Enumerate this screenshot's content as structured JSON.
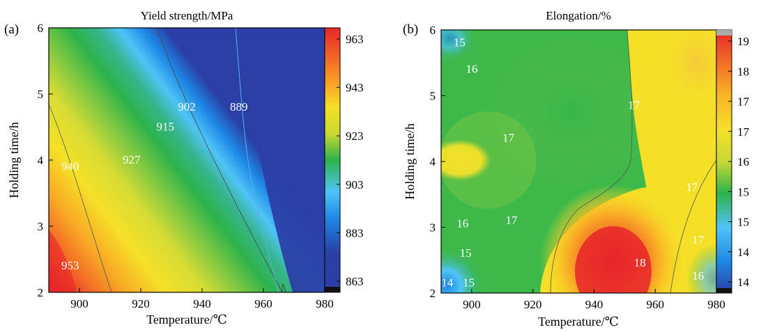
{
  "chart_data": [
    {
      "type": "heatmap",
      "panel_label": "(a)",
      "title": "Yield strength/MPa",
      "xlabel": "Temperature/℃",
      "ylabel": "Holding time/h",
      "xlim": [
        890,
        980
      ],
      "ylim": [
        2,
        6
      ],
      "x_ticks": [
        "900",
        "920",
        "940",
        "960",
        "980"
      ],
      "y_ticks": [
        "2",
        "3",
        "4",
        "5",
        "6"
      ],
      "colorbar": {
        "range": [
          863,
          963
        ],
        "tick_labels": [
          "963",
          "943",
          "923",
          "903",
          "883",
          "863"
        ],
        "tick_values": [
          963,
          943,
          923,
          903,
          883,
          863
        ]
      },
      "contour_labels": [
        {
          "text": "953",
          "x": 897,
          "y": 2.35
        },
        {
          "text": "940",
          "x": 897,
          "y": 3.85
        },
        {
          "text": "927",
          "x": 917,
          "y": 3.95
        },
        {
          "text": "915",
          "x": 928,
          "y": 4.45
        },
        {
          "text": "902",
          "x": 935,
          "y": 4.75
        },
        {
          "text": "889",
          "x": 952,
          "y": 4.75
        }
      ],
      "colors": {
        "high": "#e8262a",
        "mid": "#2db34a",
        "low": "#2b3fa6"
      }
    },
    {
      "type": "heatmap",
      "panel_label": "(b)",
      "title": "Elongation/%",
      "xlabel": "Temperature/℃",
      "ylabel": "Holding time/h",
      "xlim": [
        890,
        980
      ],
      "ylim": [
        2,
        6
      ],
      "x_ticks": [
        "900",
        "920",
        "940",
        "960",
        "980"
      ],
      "y_ticks": [
        "2",
        "3",
        "4",
        "5",
        "6"
      ],
      "colorbar": {
        "range": [
          14,
          19
        ],
        "tick_labels": [
          "19",
          "18",
          "17",
          "17",
          "16",
          "15",
          "15",
          "14",
          "14"
        ]
      },
      "contour_labels": [
        {
          "text": "15",
          "x": 896,
          "y": 5.75
        },
        {
          "text": "16",
          "x": 900,
          "y": 5.35
        },
        {
          "text": "17",
          "x": 912,
          "y": 4.3
        },
        {
          "text": "16",
          "x": 897,
          "y": 3.0
        },
        {
          "text": "17",
          "x": 913,
          "y": 3.05
        },
        {
          "text": "15",
          "x": 898,
          "y": 2.55
        },
        {
          "text": "14",
          "x": 892,
          "y": 2.1
        },
        {
          "text": "15",
          "x": 899,
          "y": 2.1
        },
        {
          "text": "17",
          "x": 953,
          "y": 4.8
        },
        {
          "text": "17",
          "x": 972,
          "y": 3.55
        },
        {
          "text": "17",
          "x": 974,
          "y": 2.75
        },
        {
          "text": "18",
          "x": 955,
          "y": 2.4
        },
        {
          "text": "16",
          "x": 974,
          "y": 2.2
        }
      ],
      "colors": {
        "high": "#e8262a",
        "mid": "#f5d020",
        "low": "#2db34a"
      }
    }
  ]
}
